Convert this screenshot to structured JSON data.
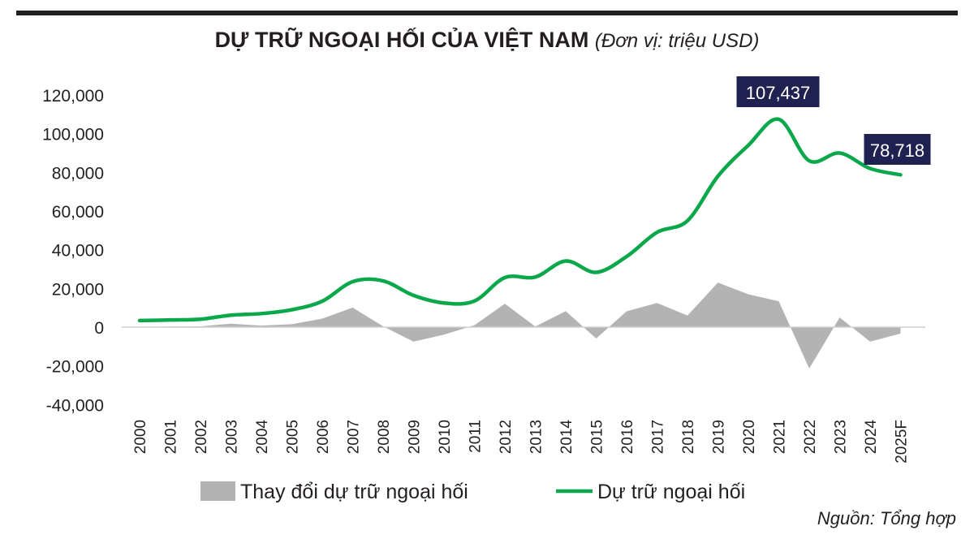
{
  "title": "DỰ TRỮ NGOẠI HỐI CỦA VIỆT NAM",
  "unit": "(Đơn vị: triệu USD)",
  "source": "Nguồn: Tổng hợp",
  "colors": {
    "line": "#0aa84a",
    "area": "#b3b3b3",
    "label_bg": "#1f2150"
  },
  "chart_data": {
    "type": "line",
    "title": "DỰ TRỮ NGOẠI HỐI CỦA VIỆT NAM (Đơn vị: triệu USD)",
    "xlabel": "",
    "ylabel": "",
    "ylim": [
      -40000,
      120000
    ],
    "yticks": [
      -40000,
      -20000,
      0,
      20000,
      40000,
      60000,
      80000,
      100000,
      120000
    ],
    "ytick_labels": [
      "-40,000",
      "-20,000",
      "0",
      "20,000",
      "40,000",
      "60,000",
      "80,000",
      "100,000",
      "120,000"
    ],
    "categories": [
      "2000",
      "2001",
      "2002",
      "2003",
      "2004",
      "2005",
      "2006",
      "2007",
      "2008",
      "2009",
      "2010",
      "2011",
      "2012",
      "2013",
      "2014",
      "2015",
      "2016",
      "2017",
      "2018",
      "2019",
      "2020",
      "2021",
      "2022",
      "2023",
      "2024",
      "2025F"
    ],
    "legend_position": "bottom",
    "series": [
      {
        "name": "Thay đổi dự trữ ngoại hối",
        "type": "area",
        "values": [
          0,
          300,
          400,
          1800,
          800,
          1500,
          4400,
          10100,
          400,
          -7500,
          -3900,
          1000,
          12100,
          300,
          8300,
          -5900,
          8200,
          12500,
          6000,
          23000,
          17000,
          13400,
          -21400,
          5000,
          -7500,
          -3300
        ]
      },
      {
        "name": "Dự trữ ngoại hối",
        "type": "line",
        "values": [
          3400,
          3700,
          4100,
          6200,
          7000,
          9000,
          13400,
          23500,
          23900,
          16400,
          12500,
          13500,
          25600,
          25900,
          34200,
          28300,
          36500,
          49000,
          55000,
          78000,
          94000,
          107437,
          86000,
          90000,
          82000,
          78718
        ]
      }
    ],
    "annotations": [
      {
        "category": "2021",
        "text": "107,437"
      },
      {
        "category": "2025F",
        "text": "78,718"
      }
    ]
  }
}
